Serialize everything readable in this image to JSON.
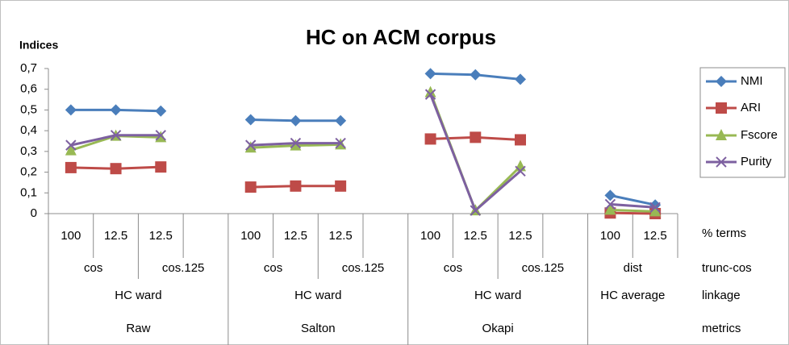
{
  "chart_data": {
    "type": "line",
    "title": "HC on ACM corpus",
    "y_label": "Indices",
    "categories": [
      "100",
      "12.5",
      "12.5",
      null,
      "100",
      "12.5",
      "12.5",
      null,
      "100",
      "12.5",
      "12.5",
      null,
      "100",
      "12.5"
    ],
    "level_names": [
      "% terms",
      "trunc-cos",
      "linkage",
      "metrics"
    ],
    "group_levels": [
      [
        {
          "label": "cos",
          "size": 2
        },
        {
          "label": "cos.125",
          "size": 2
        },
        {
          "label": "cos",
          "size": 2
        },
        {
          "label": "cos.125",
          "size": 2
        },
        {
          "label": "cos",
          "size": 2
        },
        {
          "label": "cos.125",
          "size": 2
        },
        {
          "label": "dist",
          "size": 2
        }
      ],
      [
        {
          "label": "HC ward",
          "size": 4
        },
        {
          "label": "HC ward",
          "size": 4
        },
        {
          "label": "HC ward",
          "size": 4
        },
        {
          "label": "HC average",
          "size": 2
        }
      ],
      [
        {
          "label": "Raw",
          "size": 4
        },
        {
          "label": "Salton",
          "size": 4
        },
        {
          "label": "Okapi",
          "size": 4
        },
        {
          "label": null,
          "size": 2
        }
      ]
    ],
    "series": [
      {
        "name": "NMI",
        "color": "#4a7ebb",
        "marker": "diamond",
        "values": [
          0.5,
          0.5,
          0.495,
          null,
          0.453,
          0.448,
          0.448,
          null,
          0.675,
          0.67,
          0.648,
          null,
          0.088,
          0.042
        ]
      },
      {
        "name": "ARI",
        "color": "#be4b48",
        "marker": "square",
        "values": [
          0.222,
          0.217,
          0.225,
          null,
          0.128,
          0.133,
          0.133,
          null,
          0.36,
          0.368,
          0.356,
          null,
          0.003,
          0.0
        ]
      },
      {
        "name": "Fscore",
        "color": "#98b954",
        "marker": "triangle",
        "values": [
          0.305,
          0.375,
          0.368,
          null,
          0.318,
          0.328,
          0.333,
          null,
          0.585,
          0.015,
          0.228,
          null,
          0.018,
          0.01
        ]
      },
      {
        "name": "Purity",
        "color": "#7d60a0",
        "marker": "x",
        "values": [
          0.33,
          0.378,
          0.378,
          null,
          0.33,
          0.34,
          0.34,
          null,
          0.575,
          0.015,
          0.205,
          null,
          0.045,
          0.03
        ]
      }
    ],
    "ylim": [
      0,
      0.7
    ],
    "yticks": [
      0,
      {
        "value": 0.1,
        "label": "0,1"
      },
      {
        "value": 0.2,
        "label": "0,2"
      },
      {
        "value": 0.3,
        "label": "0,3"
      },
      {
        "value": 0.4,
        "label": "0,4"
      },
      {
        "value": 0.5,
        "label": "0,5"
      },
      {
        "value": 0.6,
        "label": "0,6"
      },
      {
        "value": 0.7,
        "label": "0,7"
      }
    ],
    "legend": "right"
  }
}
